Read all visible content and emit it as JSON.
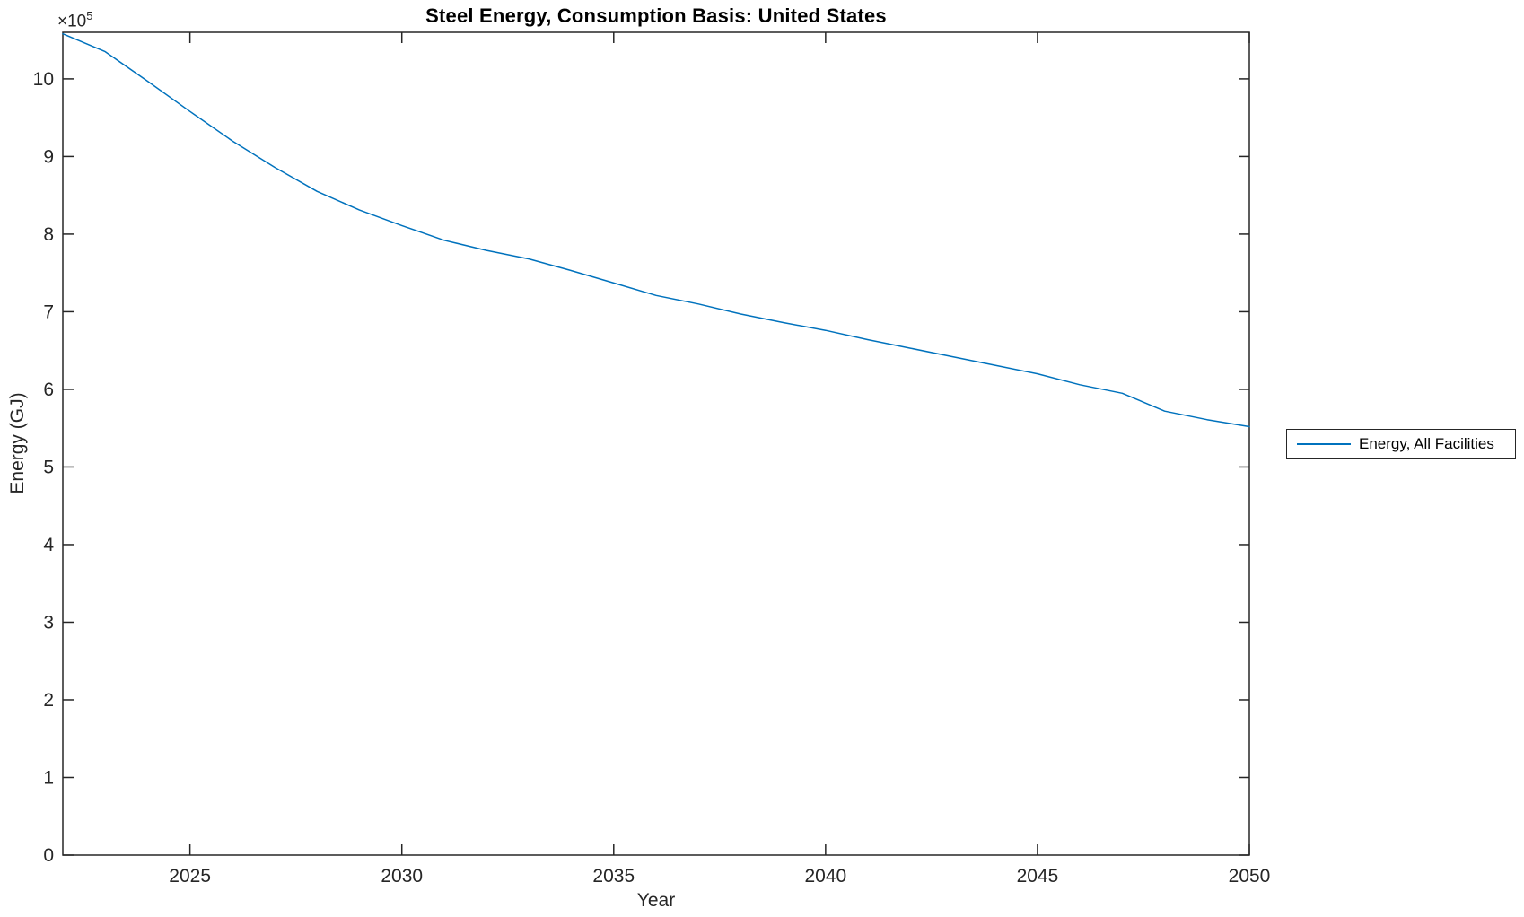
{
  "chart_data": {
    "type": "line",
    "title": "Steel Energy, Consumption Basis: United States",
    "xlabel": "Year",
    "ylabel": "Energy (GJ)",
    "y_axis_multiplier": {
      "base": "×10",
      "exp": "5"
    },
    "xlim": [
      2022,
      2050
    ],
    "ylim": [
      0,
      10.6
    ],
    "x_ticks": [
      2025,
      2030,
      2035,
      2040,
      2045,
      2050
    ],
    "y_ticks": [
      0,
      1,
      2,
      3,
      4,
      5,
      6,
      7,
      8,
      9,
      10
    ],
    "grid": false,
    "box": true,
    "tick_direction": "in",
    "axis_color": "#262626",
    "legend": {
      "position": "outside-right",
      "entries": [
        {
          "label": "Energy, All Facilities",
          "color": "#0072BD"
        }
      ]
    },
    "series": [
      {
        "name": "Energy, All Facilities",
        "color": "#0072BD",
        "x": [
          2022,
          2023,
          2024,
          2025,
          2026,
          2027,
          2028,
          2029,
          2030,
          2031,
          2032,
          2033,
          2034,
          2035,
          2036,
          2037,
          2038,
          2039,
          2040,
          2041,
          2042,
          2043,
          2044,
          2045,
          2046,
          2047,
          2048,
          2049,
          2050
        ],
        "values_x1e5_GJ": [
          10.58,
          10.35,
          9.97,
          9.58,
          9.2,
          8.86,
          8.55,
          8.31,
          8.11,
          7.92,
          7.79,
          7.68,
          7.53,
          7.37,
          7.21,
          7.1,
          6.97,
          6.86,
          6.76,
          6.64,
          6.53,
          6.42,
          6.31,
          6.2,
          6.06,
          5.95,
          5.72,
          5.61,
          5.52
        ]
      }
    ]
  }
}
